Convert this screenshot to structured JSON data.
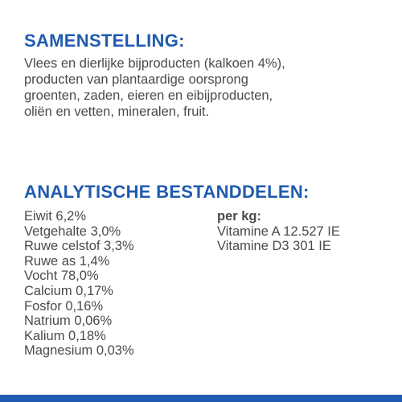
{
  "composition": {
    "title": "SAMENSTELLING:",
    "lines": [
      "Vlees en dierlijke bijproducten (kalkoen 4%),",
      "producten van plantaardige oorsprong",
      "groenten, zaden, eieren en eibijproducten,",
      "oliën en vetten, mineralen, fruit."
    ]
  },
  "analytical": {
    "title": "ANALYTISCHE BESTANDDELEN:",
    "left": [
      "Eiwit 6,2%",
      "Vetgehalte 3,0%",
      "Ruwe celstof 3,3%",
      "Ruwe as 1,4%",
      "Vocht 78,0%",
      "Calcium 0,17%",
      "Fosfor 0,16%",
      "Natrium 0,06%",
      "Kalium 0,18%",
      "Magnesium 0,03%"
    ],
    "right_heading": "per kg:",
    "right": [
      "Vitamine A 12.527 IE",
      "Vitamine D3 301 IE"
    ]
  },
  "colors": {
    "accent": "#1f5bb0",
    "text": "#4a4a4a",
    "background": "#ffffff"
  }
}
